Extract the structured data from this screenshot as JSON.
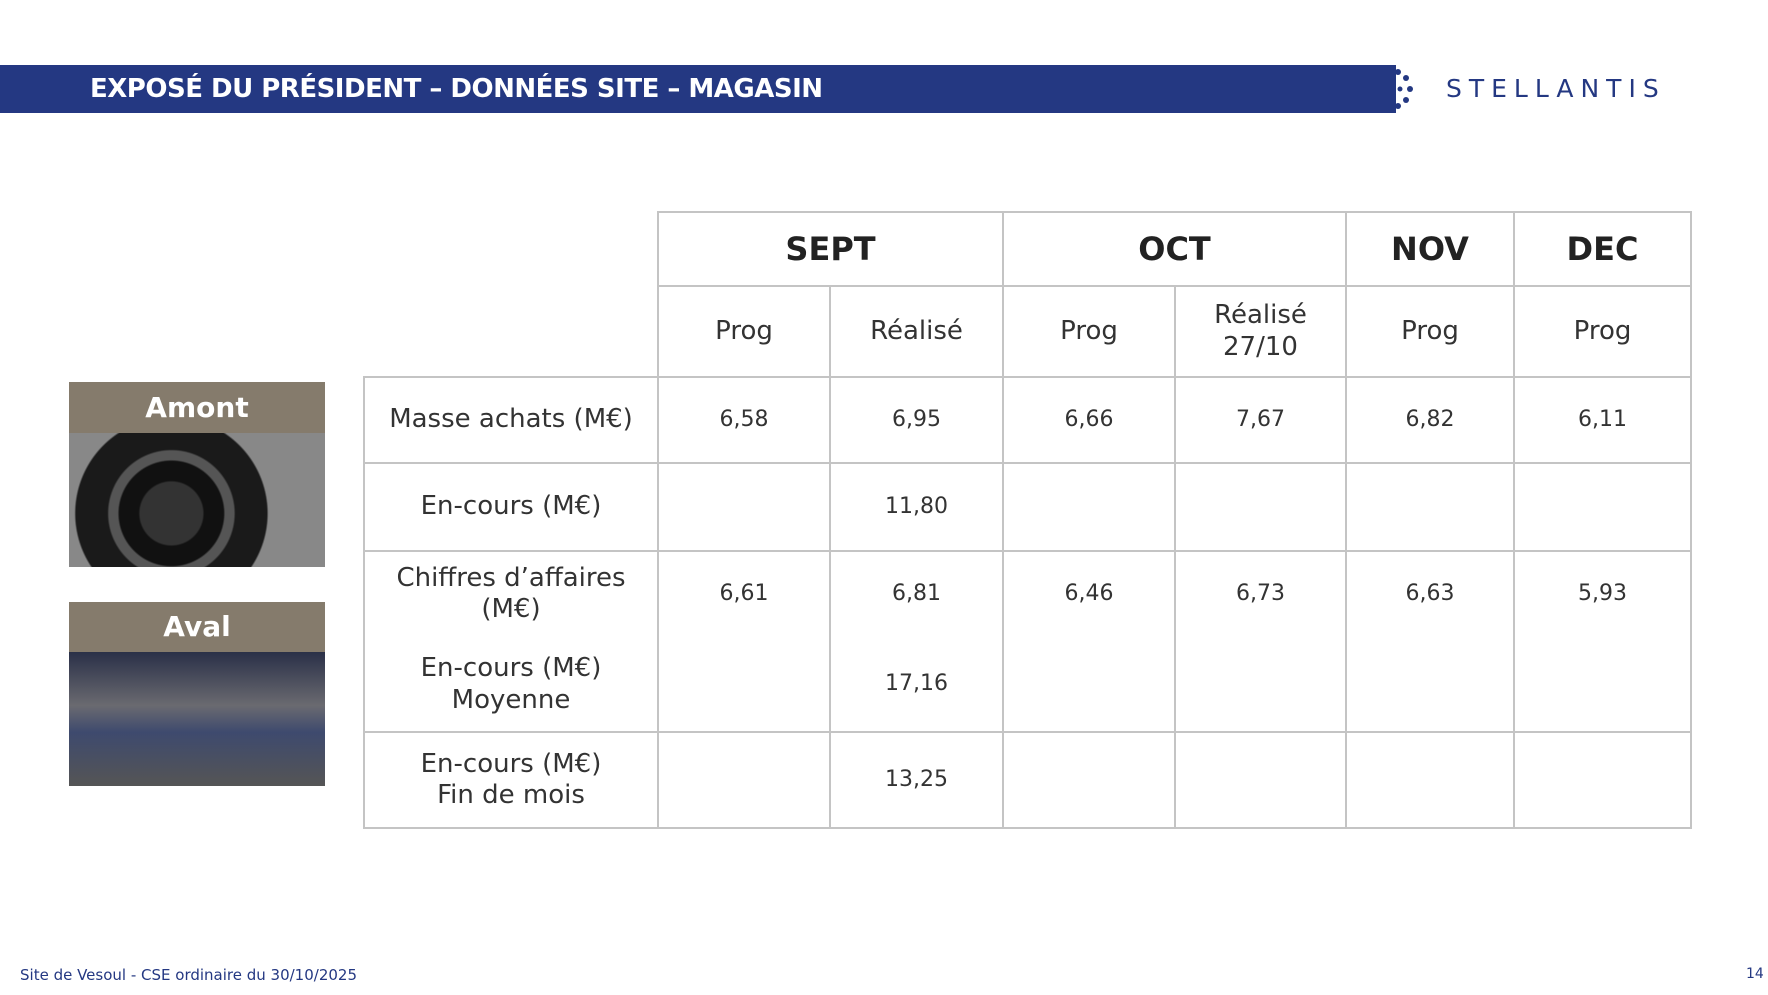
{
  "header": {
    "title": "EXPOSÉ DU PRÉSIDENT – DONNÉES SITE – MAGASIN",
    "logo": "STELLANTIS"
  },
  "side": {
    "top_label": "Amont",
    "bottom_label": "Aval"
  },
  "table": {
    "months": [
      "SEPT",
      "OCT",
      "NOV",
      "DEC"
    ],
    "subheaders": [
      "Prog",
      "Réalisé",
      "Prog",
      "Réalisé\n27/10",
      "Prog",
      "Prog"
    ],
    "rows": [
      {
        "label": "Masse achats (M€)",
        "values": [
          "6,58",
          "6,95",
          "6,66",
          "7,67",
          "6,82",
          "6,11"
        ]
      },
      {
        "label": "En-cours (M€)",
        "values": [
          null,
          "11,80",
          null,
          null,
          null,
          null
        ]
      },
      {
        "label": "Chiffres d’affaires (M€)",
        "values": [
          "6,61",
          "6,81",
          "6,46",
          "6,73",
          "6,63",
          "5,93"
        ]
      },
      {
        "label": "En-cours (M€)\nMoyenne",
        "values": [
          null,
          "17,16",
          null,
          null,
          null,
          null
        ]
      },
      {
        "label": "En-cours (M€)\nFin de mois",
        "values": [
          null,
          "13,25",
          null,
          null,
          null,
          null
        ]
      }
    ]
  },
  "footer": {
    "text": "Site de Vesoul - CSE ordinaire du 30/10/2025",
    "page": "14"
  }
}
